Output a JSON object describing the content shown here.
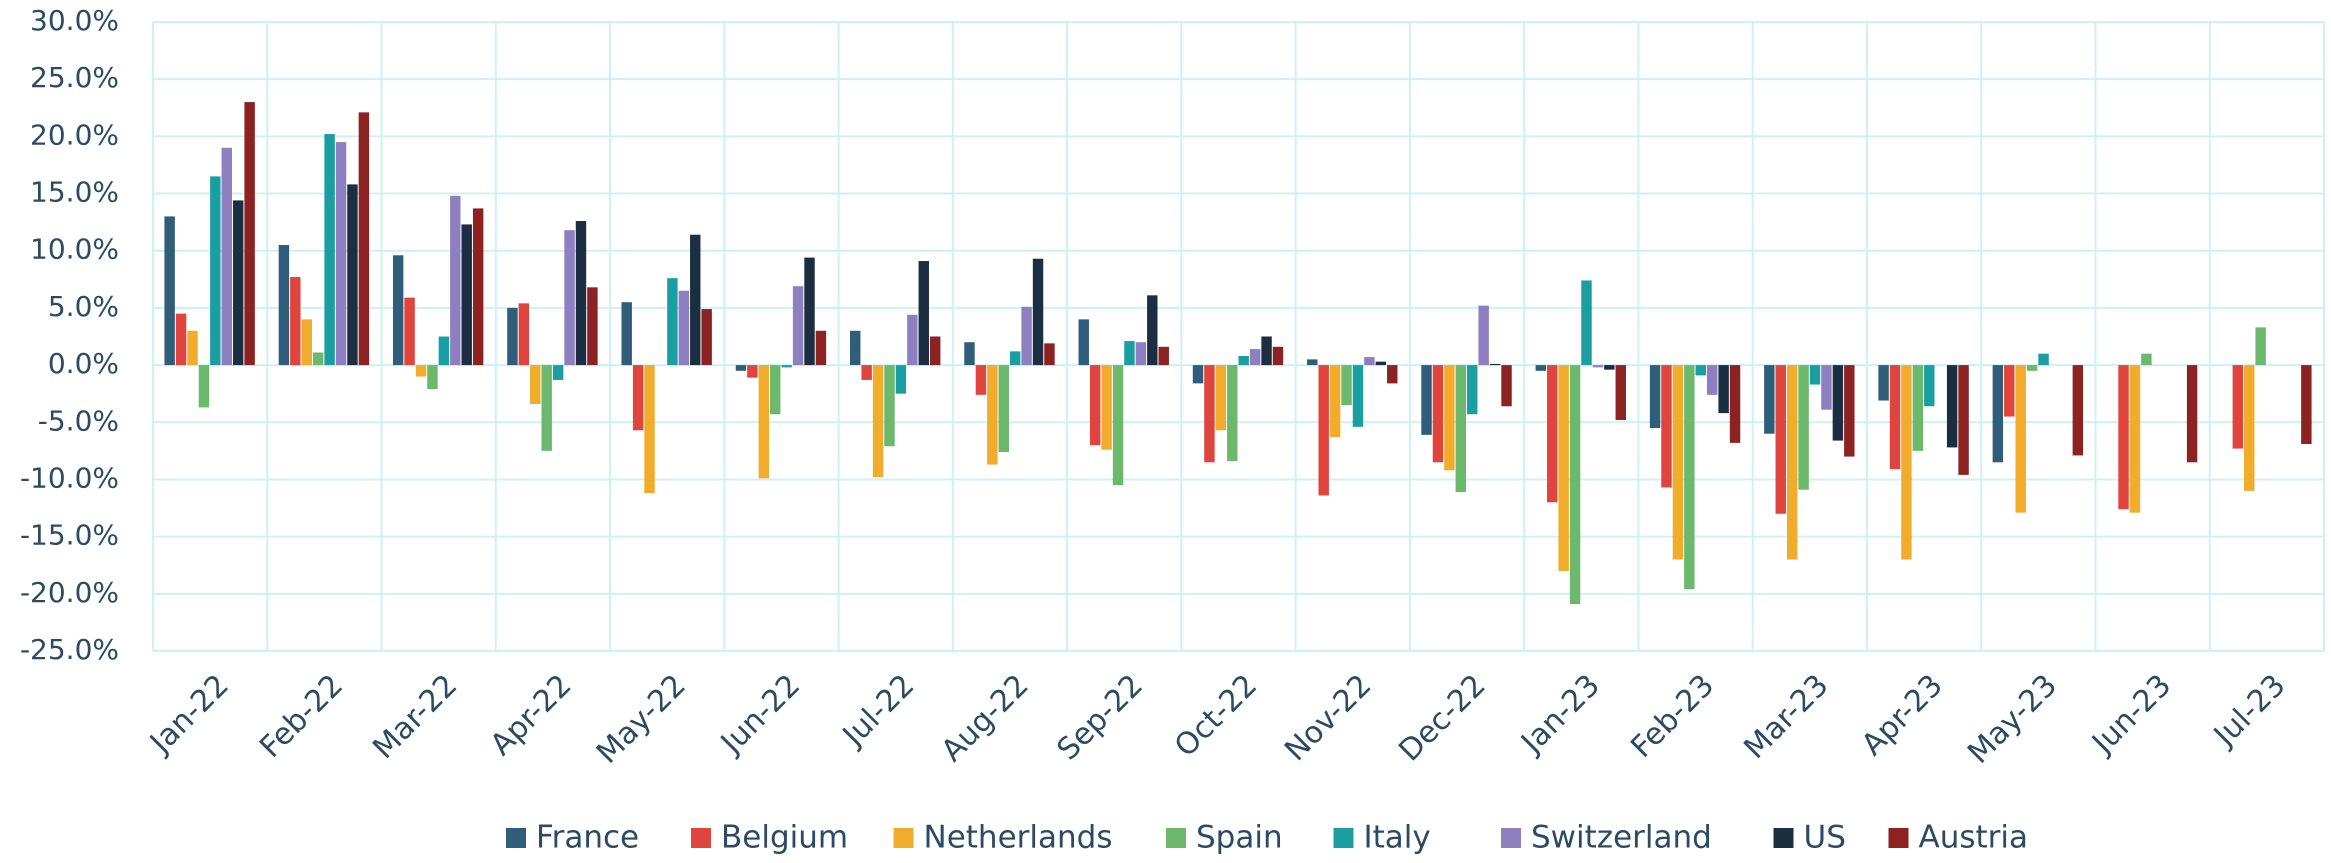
{
  "chart_data": {
    "type": "bar",
    "categories": [
      "Jan-22",
      "Feb-22",
      "Mar-22",
      "Apr-22",
      "May-22",
      "Jun-22",
      "Jul-22",
      "Aug-22",
      "Sep-22",
      "Oct-22",
      "Nov-22",
      "Dec-22",
      "Jan-23",
      "Feb-23",
      "Mar-23",
      "Apr-23",
      "May-23",
      "Jun-23",
      "Jul-23"
    ],
    "series": [
      {
        "name": "France",
        "color": "#2f5d7a",
        "values": [
          13.0,
          10.5,
          9.6,
          5.0,
          5.5,
          -0.5,
          3.0,
          2.0,
          4.0,
          -1.6,
          0.5,
          -6.1,
          -0.5,
          -5.5,
          -6.0,
          -3.1,
          -8.5,
          null,
          null
        ]
      },
      {
        "name": "Belgium",
        "color": "#e0443f",
        "values": [
          4.5,
          7.7,
          5.9,
          5.4,
          -5.7,
          -1.1,
          -1.3,
          -2.6,
          -7.0,
          -8.5,
          -11.4,
          -8.5,
          -12.0,
          -10.7,
          -13.0,
          -9.1,
          -4.5,
          -12.6,
          -7.3
        ]
      },
      {
        "name": "Netherlands",
        "color": "#f0ac2a",
        "values": [
          3.0,
          4.0,
          -1.0,
          -3.4,
          -11.2,
          -9.9,
          -9.8,
          -8.7,
          -7.4,
          -5.7,
          -6.3,
          -9.2,
          -18.0,
          -17.0,
          -17.0,
          -17.0,
          -12.9,
          -12.9,
          -11.0
        ]
      },
      {
        "name": "Spain",
        "color": "#6cb86c",
        "values": [
          -3.7,
          1.1,
          -2.1,
          -7.5,
          null,
          -4.3,
          -7.1,
          -7.6,
          -10.5,
          -8.4,
          -3.5,
          -11.1,
          -20.9,
          -19.6,
          -10.9,
          -7.5,
          -0.5,
          1.0,
          3.3
        ]
      },
      {
        "name": "Italy",
        "color": "#1b9ea2",
        "values": [
          16.5,
          20.2,
          2.5,
          -1.3,
          7.6,
          -0.2,
          -2.5,
          1.2,
          2.1,
          0.8,
          -5.4,
          -4.3,
          7.4,
          -0.9,
          -1.7,
          -3.6,
          1.0,
          null,
          null
        ]
      },
      {
        "name": "Switzerland",
        "color": "#8e7fc1",
        "values": [
          19.0,
          19.5,
          14.8,
          11.8,
          6.5,
          6.9,
          4.4,
          5.1,
          2.0,
          1.4,
          0.7,
          5.2,
          -0.2,
          -2.6,
          -3.9,
          null,
          null,
          null,
          null
        ]
      },
      {
        "name": "US",
        "color": "#1c2f42",
        "values": [
          14.4,
          15.8,
          12.3,
          12.6,
          11.4,
          9.4,
          9.1,
          9.3,
          6.1,
          2.5,
          0.3,
          0.1,
          -0.4,
          -4.2,
          -6.6,
          -7.2,
          null,
          null,
          null
        ]
      },
      {
        "name": "Austria",
        "color": "#8c2322",
        "values": [
          23.0,
          22.1,
          13.7,
          6.8,
          4.9,
          3.0,
          2.5,
          1.9,
          1.6,
          1.6,
          -1.6,
          -3.6,
          -4.8,
          -6.8,
          -8.0,
          -9.6,
          -7.9,
          -8.5,
          -6.9
        ]
      }
    ],
    "ylim": [
      -25,
      30
    ],
    "yticks": [
      {
        "value": -25,
        "label": "-25.0%"
      },
      {
        "value": -20,
        "label": "-20.0%"
      },
      {
        "value": -15,
        "label": "-15.0%"
      },
      {
        "value": -10,
        "label": "-10.0%"
      },
      {
        "value": -5,
        "label": "-5.0%"
      },
      {
        "value": 0,
        "label": "0.0%"
      },
      {
        "value": 5,
        "label": "5.0%"
      },
      {
        "value": 10,
        "label": "10.0%"
      },
      {
        "value": 15,
        "label": "15.0%"
      },
      {
        "value": 20,
        "label": "20.0%"
      },
      {
        "value": 25,
        "label": "25.0%"
      },
      {
        "value": 30,
        "label": "30.0%"
      }
    ],
    "grid": true,
    "legend": "bottom"
  }
}
